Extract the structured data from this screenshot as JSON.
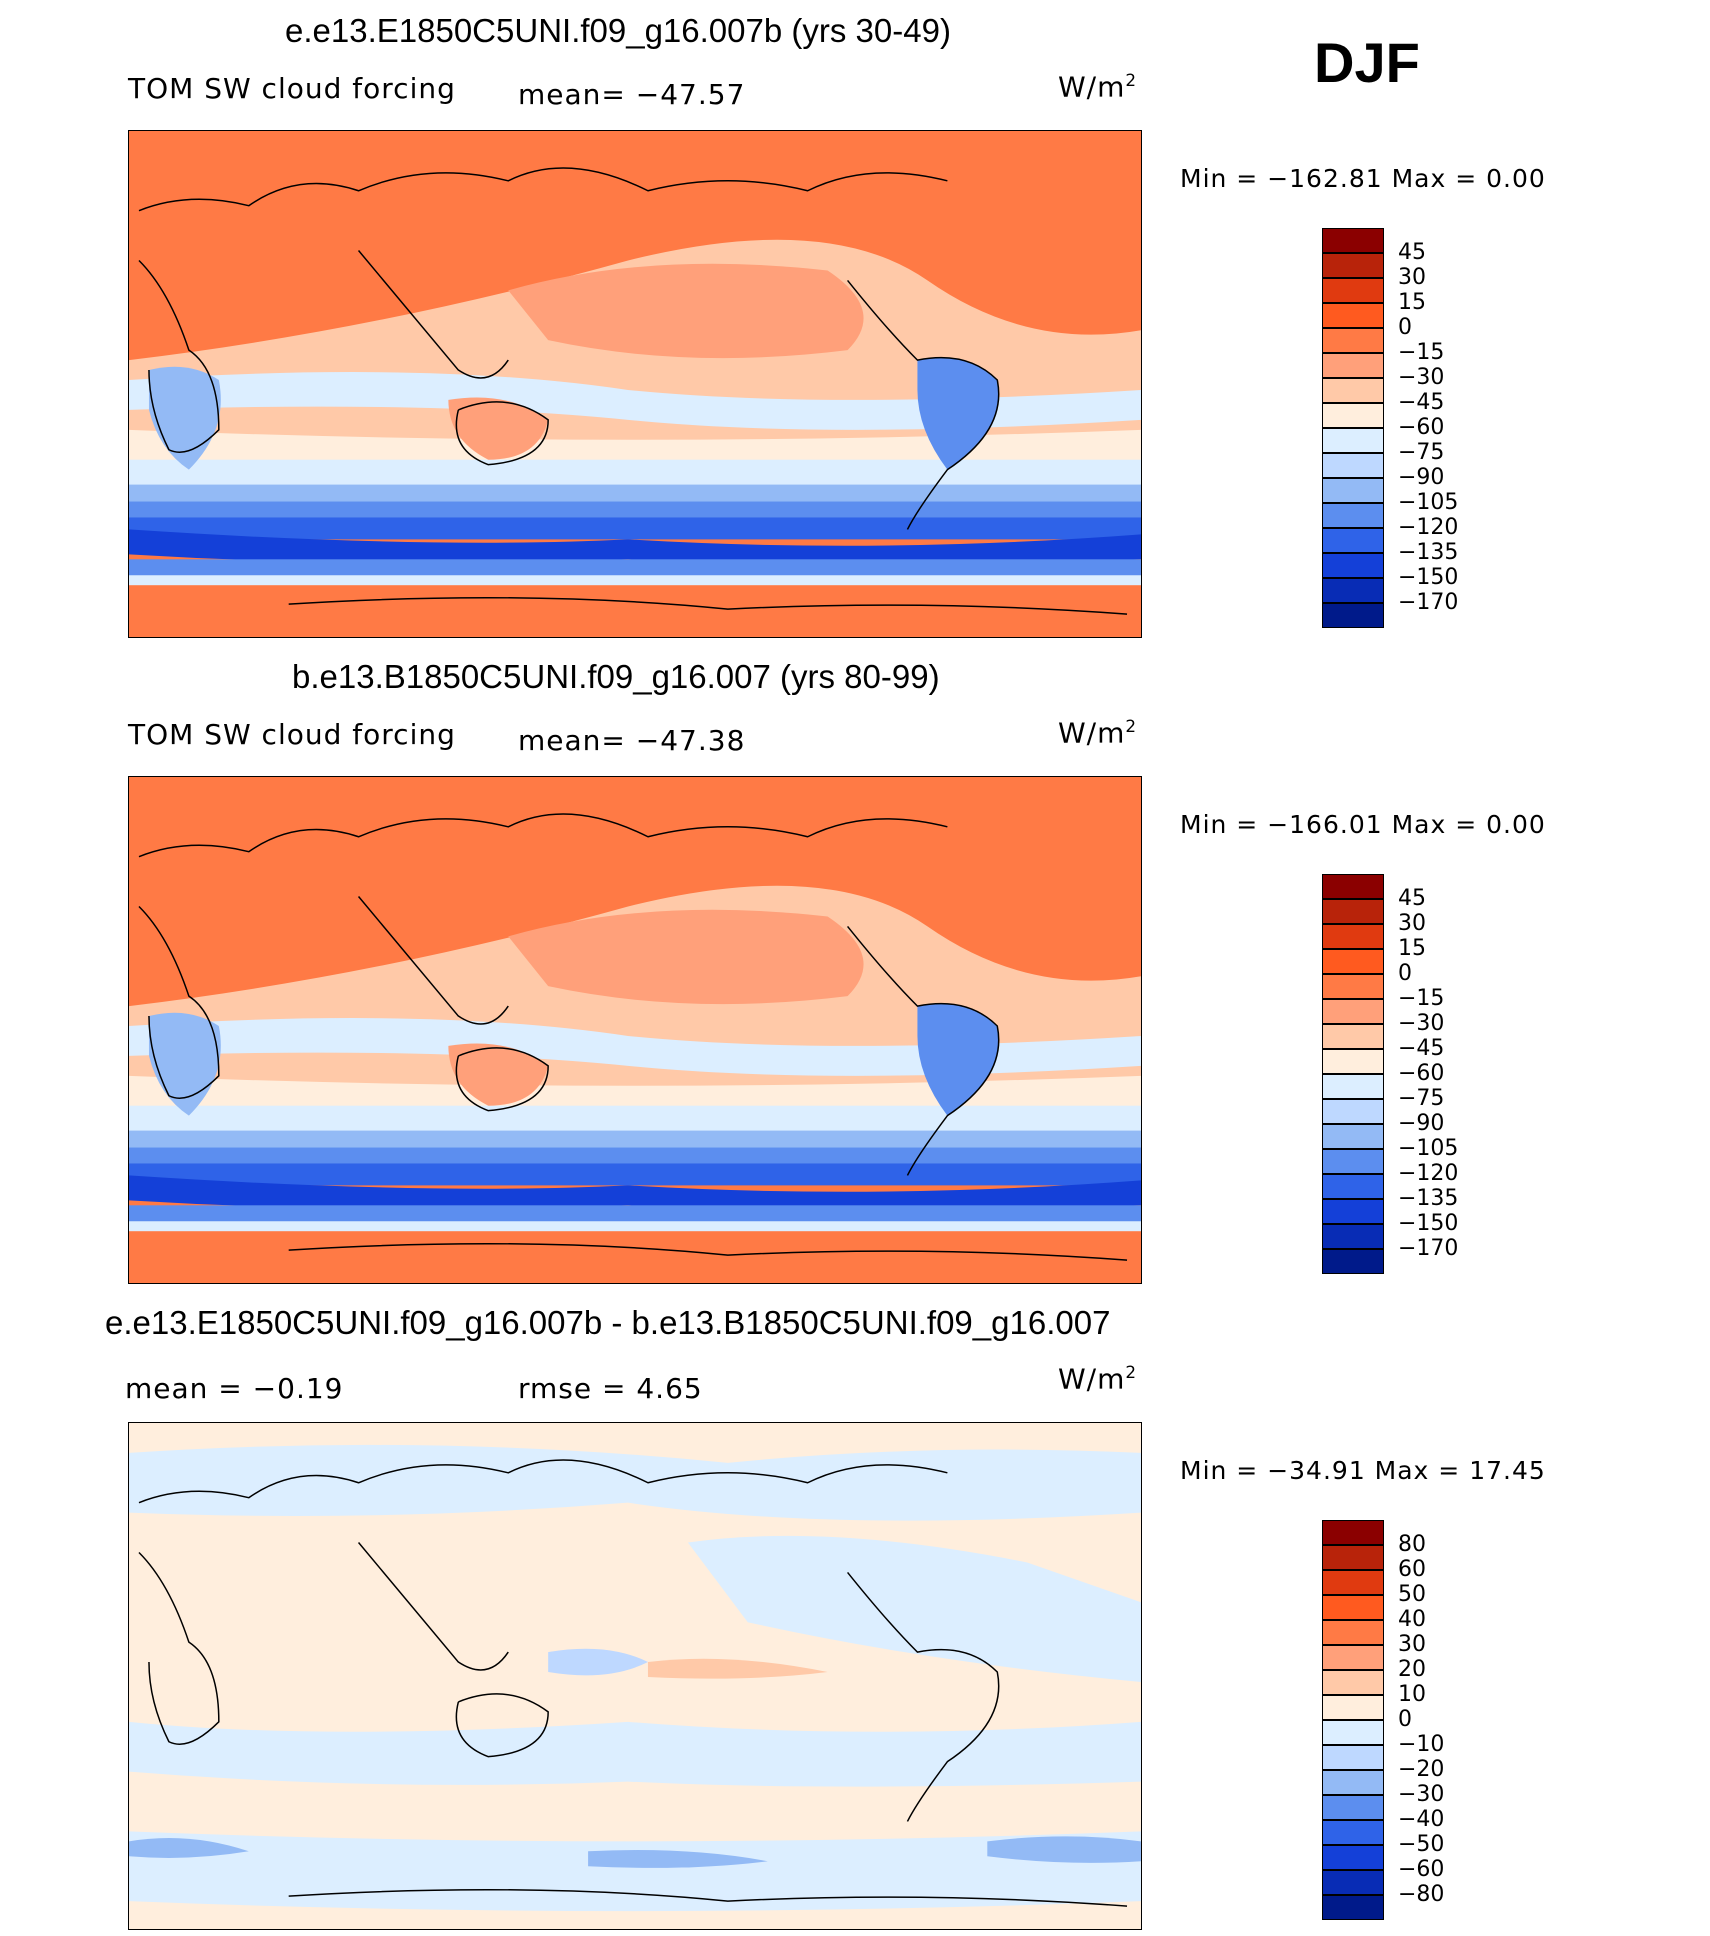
{
  "season": "DJF",
  "units": "W/m",
  "units_sup": "2",
  "panels": [
    {
      "title": "e.e13.E1850C5UNI.f09_g16.007b (yrs 30-49)",
      "variable": "TOM SW cloud forcing",
      "stat_left": "",
      "stat_mid": "mean= −47.57",
      "minmax": "Min = −162.81 Max =    0.00",
      "colorbar_labels": [
        "45",
        "30",
        "15",
        "0",
        "−15",
        "−30",
        "−45",
        "−60",
        "−75",
        "−90",
        "−105",
        "−120",
        "−135",
        "−150",
        "−170"
      ],
      "colors": [
        "#8B0000",
        "#B8230A",
        "#E03A10",
        "#FF5A1F",
        "#FF7A45",
        "#FFA07A",
        "#FFC9A8",
        "#FFEEDD",
        "#DCEEFF",
        "#BED8FF",
        "#93BAF5",
        "#5C8EEF",
        "#2F63E8",
        "#1440D8",
        "#082CB5",
        "#001A8A"
      ]
    },
    {
      "title": "b.e13.B1850C5UNI.f09_g16.007 (yrs 80-99)",
      "variable": "TOM SW cloud forcing",
      "stat_left": "",
      "stat_mid": "mean= −47.38",
      "minmax": "Min = −166.01 Max =    0.00",
      "colorbar_labels": [
        "45",
        "30",
        "15",
        "0",
        "−15",
        "−30",
        "−45",
        "−60",
        "−75",
        "−90",
        "−105",
        "−120",
        "−135",
        "−150",
        "−170"
      ],
      "colors": [
        "#8B0000",
        "#B8230A",
        "#E03A10",
        "#FF5A1F",
        "#FF7A45",
        "#FFA07A",
        "#FFC9A8",
        "#FFEEDD",
        "#DCEEFF",
        "#BED8FF",
        "#93BAF5",
        "#5C8EEF",
        "#2F63E8",
        "#1440D8",
        "#082CB5",
        "#001A8A"
      ]
    },
    {
      "title": "e.e13.E1850C5UNI.f09_g16.007b - b.e13.B1850C5UNI.f09_g16.007",
      "variable": "",
      "stat_left": "mean =   −0.19",
      "stat_mid": "rmse =    4.65",
      "minmax": "Min = −34.91 Max =  17.45",
      "colorbar_labels": [
        "80",
        "60",
        "50",
        "40",
        "30",
        "20",
        "10",
        "0",
        "−10",
        "−20",
        "−30",
        "−40",
        "−50",
        "−60",
        "−80"
      ],
      "colors": [
        "#8B0000",
        "#B8230A",
        "#E03A10",
        "#FF5A1F",
        "#FF7A45",
        "#FFA07A",
        "#FFC9A8",
        "#FFEEDD",
        "#DCEEFF",
        "#BED8FF",
        "#93BAF5",
        "#5C8EEF",
        "#2F63E8",
        "#1440D8",
        "#082CB5",
        "#001A8A"
      ]
    }
  ]
}
